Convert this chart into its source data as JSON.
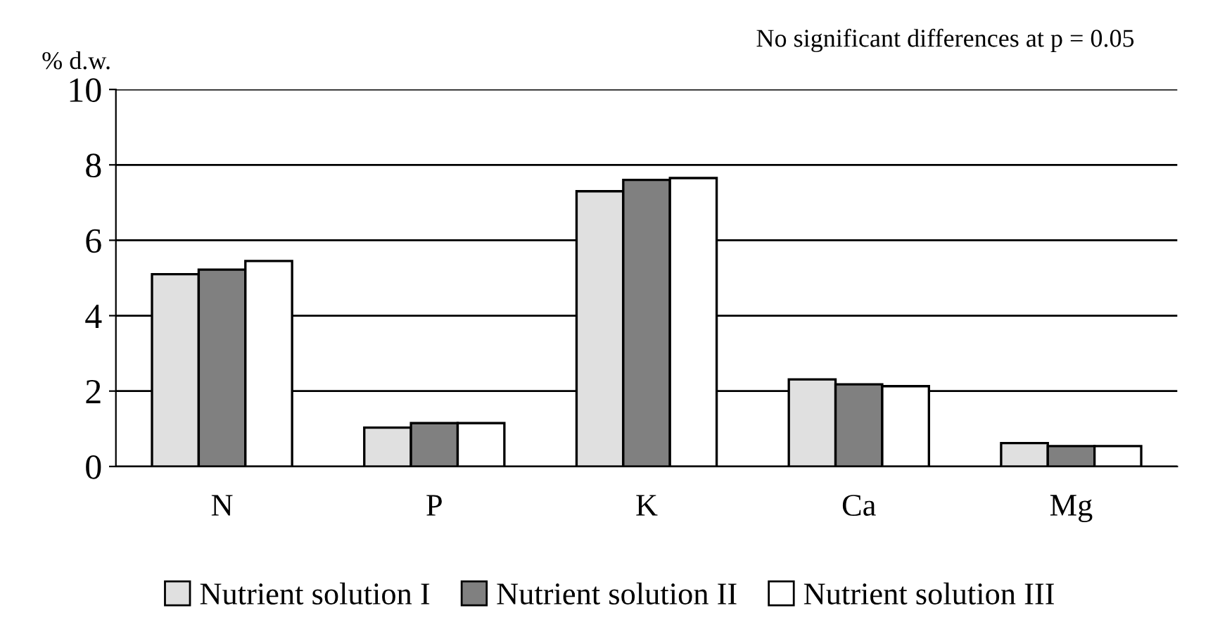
{
  "chart_data": {
    "type": "bar",
    "ylabel": "% d.w.",
    "annotations": [
      "No significant differences at p = 0.05"
    ],
    "categories": [
      "N",
      "P",
      "K",
      "Ca",
      "Mg"
    ],
    "series": [
      {
        "name": "Nutrient solution I",
        "color": "#e0e0e0",
        "values": [
          5.1,
          1.03,
          7.3,
          2.31,
          0.62
        ]
      },
      {
        "name": "Nutrient solution II",
        "color": "#808080",
        "values": [
          5.22,
          1.15,
          7.6,
          2.18,
          0.54
        ]
      },
      {
        "name": "Nutrient solution III",
        "color": "#ffffff",
        "values": [
          5.45,
          1.15,
          7.65,
          2.13,
          0.54
        ]
      }
    ],
    "ylim": [
      0,
      10
    ],
    "yticks": [
      0,
      2,
      4,
      6,
      8,
      10
    ],
    "grid": "y",
    "legend": "bottom"
  }
}
